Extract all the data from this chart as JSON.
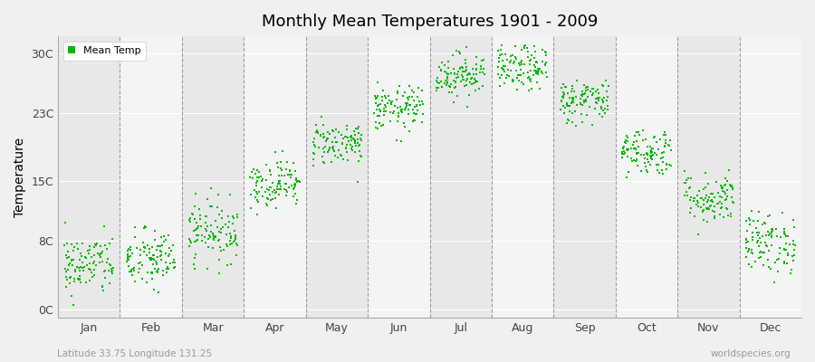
{
  "title": "Monthly Mean Temperatures 1901 - 2009",
  "ylabel": "Temperature",
  "ytick_labels": [
    "0C",
    "8C",
    "15C",
    "23C",
    "30C"
  ],
  "ytick_values": [
    0,
    8,
    15,
    23,
    30
  ],
  "ylim": [
    -1,
    32
  ],
  "month_labels": [
    "Jan",
    "Feb",
    "Mar",
    "Apr",
    "May",
    "Jun",
    "Jul",
    "Aug",
    "Sep",
    "Oct",
    "Nov",
    "Dec"
  ],
  "dot_color": "#00BB00",
  "dot_size": 2.5,
  "legend_label": "Mean Temp",
  "subtitle": "Latitude 33.75 Longitude 131.25",
  "watermark": "worldspecies.org",
  "monthly_means": [
    5.2,
    5.8,
    9.2,
    14.8,
    19.5,
    23.5,
    27.5,
    28.2,
    24.5,
    18.5,
    13.0,
    7.8
  ],
  "monthly_stds": [
    1.8,
    1.8,
    1.8,
    1.4,
    1.3,
    1.3,
    1.3,
    1.3,
    1.3,
    1.4,
    1.5,
    1.8
  ],
  "n_years": 109,
  "seed": 42,
  "band_colors": [
    "#e8e8e8",
    "#f4f4f4"
  ],
  "xlim": [
    0,
    12
  ]
}
